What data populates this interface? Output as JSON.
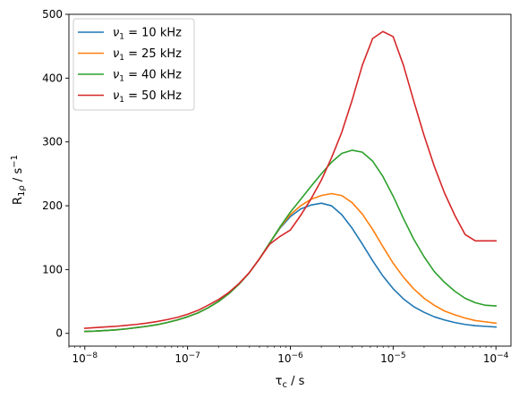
{
  "chart_data": {
    "type": "line",
    "x_scale": "log",
    "xlim": [
      7e-09,
      0.00014
    ],
    "ylim": [
      -20,
      500
    ],
    "xlabel_main": "τ",
    "xlabel_sub": "c",
    "xlabel_unit": " / s",
    "ylabel_main": "R",
    "ylabel_sub": "1ρ",
    "ylabel_unit": " / s",
    "ylabel_sup": "−1",
    "x_ticks": [
      {
        "value": 1e-08,
        "base": "10",
        "exp": "−8"
      },
      {
        "value": 1e-07,
        "base": "10",
        "exp": "−7"
      },
      {
        "value": 1e-06,
        "base": "10",
        "exp": "−6"
      },
      {
        "value": 1e-05,
        "base": "10",
        "exp": "−5"
      },
      {
        "value": 0.0001,
        "base": "10",
        "exp": "−4"
      }
    ],
    "y_ticks": [
      0,
      100,
      200,
      300,
      400,
      500
    ],
    "legend_position": "top-left",
    "legend_symbol": "ν",
    "legend_sub": "1",
    "x": [
      1e-08,
      1.26e-08,
      1.58e-08,
      2e-08,
      2.51e-08,
      3.16e-08,
      3.98e-08,
      5.01e-08,
      6.31e-08,
      7.94e-08,
      1e-07,
      1.26e-07,
      1.58e-07,
      2e-07,
      2.51e-07,
      3.16e-07,
      3.98e-07,
      5.01e-07,
      6.31e-07,
      7.94e-07,
      1e-06,
      1.26e-06,
      1.58e-06,
      2e-06,
      2.51e-06,
      3.16e-06,
      3.98e-06,
      5.01e-06,
      6.31e-06,
      7.94e-06,
      1e-05,
      1.26e-05,
      1.58e-05,
      2e-05,
      2.51e-05,
      3.16e-05,
      3.98e-05,
      5.01e-05,
      6.31e-05,
      7.94e-05,
      0.0001
    ],
    "series": [
      {
        "name": " = 10 kHz",
        "color": "#1f77b4",
        "values": [
          3,
          3.5,
          4.5,
          5.5,
          7,
          9,
          11,
          13.5,
          17,
          21,
          26,
          32,
          40,
          50,
          62,
          77,
          95,
          117,
          142,
          165,
          183,
          195,
          201,
          204,
          200,
          186,
          165,
          140,
          114,
          90,
          70,
          54,
          42,
          33,
          26,
          21,
          17,
          14,
          12,
          11,
          10
        ]
      },
      {
        "name": " = 25 kHz",
        "color": "#ff7f0e",
        "values": [
          3,
          3.5,
          4.5,
          5.5,
          7,
          9,
          11,
          13.5,
          17,
          21,
          26,
          32,
          40,
          50,
          62,
          77,
          95,
          117,
          142,
          166,
          186,
          200,
          210,
          216,
          219,
          216,
          205,
          187,
          163,
          136,
          110,
          88,
          70,
          55,
          44,
          35,
          29,
          24,
          20,
          18,
          16
        ]
      },
      {
        "name": " = 40 kHz",
        "color": "#2ca02c",
        "values": [
          3,
          3.5,
          4.5,
          5.5,
          7,
          9,
          11,
          13.5,
          17,
          21,
          26,
          32,
          40,
          50,
          62,
          77,
          95,
          117,
          142,
          167,
          190,
          210,
          230,
          250,
          268,
          282,
          287,
          284,
          270,
          246,
          215,
          180,
          148,
          120,
          97,
          80,
          66,
          55,
          48,
          44,
          43
        ]
      },
      {
        "name": " = 50 kHz",
        "color": "#d62728",
        "values": [
          8,
          9,
          10,
          11,
          12.5,
          14,
          16,
          18.5,
          21.5,
          25,
          30,
          36,
          44,
          53,
          64,
          78,
          95,
          117,
          140,
          152,
          162,
          185,
          210,
          240,
          275,
          315,
          365,
          420,
          462,
          473,
          465,
          420,
          365,
          310,
          262,
          220,
          185,
          155,
          145,
          145,
          145
        ]
      }
    ]
  }
}
